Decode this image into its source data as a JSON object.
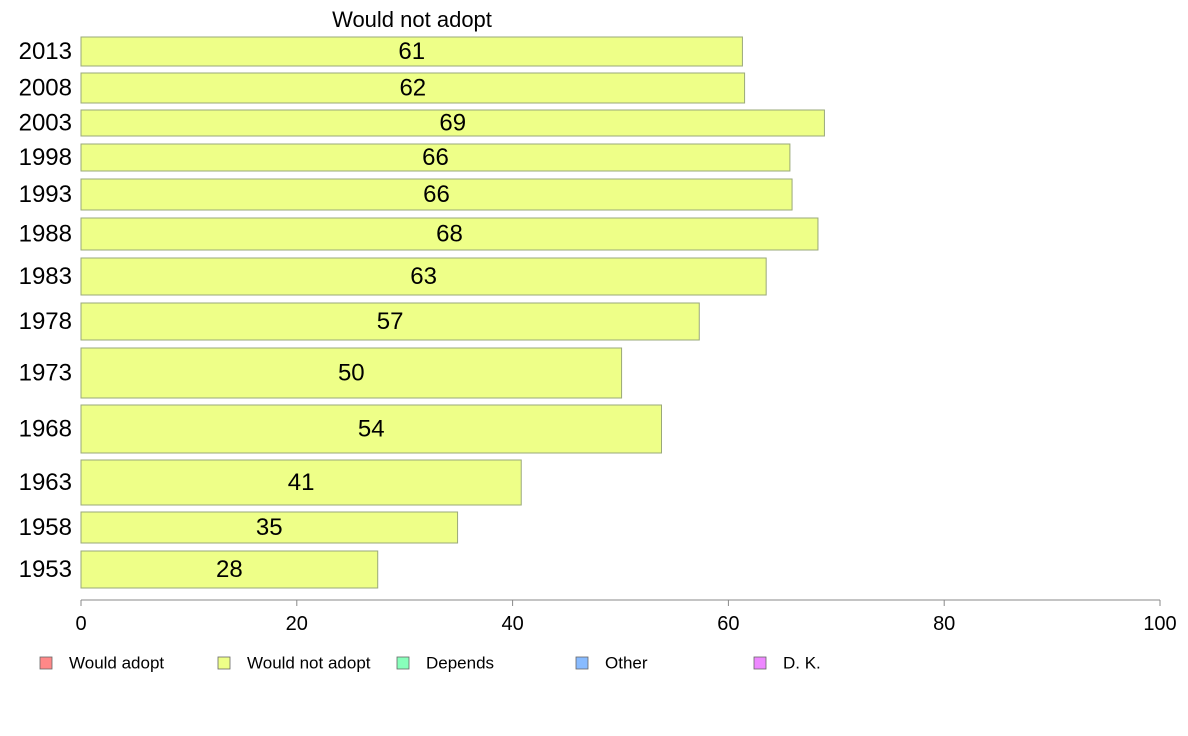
{
  "chart_data": {
    "type": "bar",
    "orientation": "horizontal",
    "title": "Would not adopt",
    "xlabel": "",
    "ylabel": "",
    "xlim": [
      0,
      100
    ],
    "xticks": [
      0,
      20,
      40,
      60,
      80,
      100
    ],
    "categories": [
      "2013",
      "2008",
      "2003",
      "1998",
      "1993",
      "1988",
      "1983",
      "1978",
      "1973",
      "1968",
      "1963",
      "1958",
      "1953"
    ],
    "series": [
      {
        "name": "Would not adopt",
        "color": "#eeff88",
        "values": [
          61.3,
          61.5,
          68.9,
          65.7,
          65.9,
          68.3,
          63.5,
          57.3,
          50.1,
          53.8,
          40.8,
          34.9,
          27.5
        ],
        "labels": [
          "61",
          "62",
          "69",
          "66",
          "66",
          "68",
          "63",
          "57",
          "50",
          "54",
          "41",
          "35",
          "28"
        ]
      }
    ],
    "grid": false,
    "legend_position": "bottom",
    "legend": [
      {
        "name": "Would adopt",
        "color": "#ff8888"
      },
      {
        "name": "Would not adopt",
        "color": "#eeff88"
      },
      {
        "name": "Depends",
        "color": "#88ffbb"
      },
      {
        "name": "Other",
        "color": "#88bbff"
      },
      {
        "name": "D. K.",
        "color": "#ee88ff"
      }
    ]
  }
}
